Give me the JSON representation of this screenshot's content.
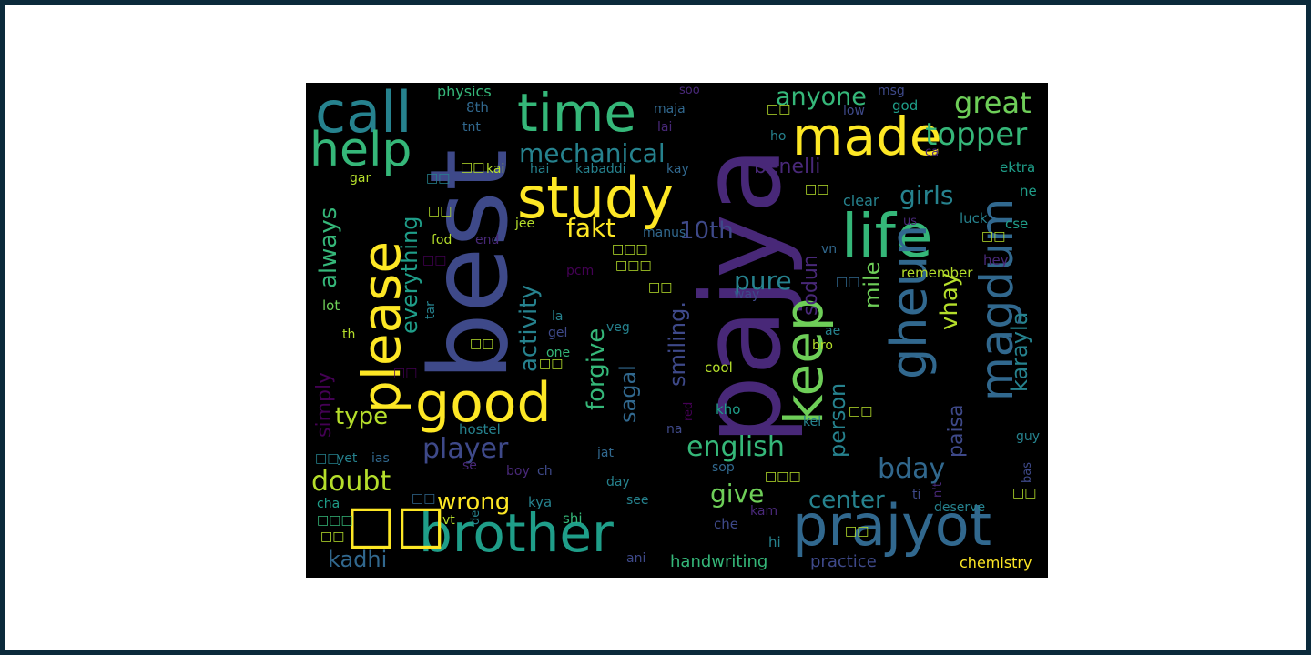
{
  "colors": {
    "background": "#000000",
    "frame": "#0b2a3b",
    "page": "#ffffff",
    "palette": [
      "#440154",
      "#482878",
      "#3e4989",
      "#31688e",
      "#26828e",
      "#1f9e89",
      "#35b779",
      "#6ece58",
      "#b5de2b",
      "#fde725"
    ]
  },
  "words": {
    "best": "best",
    "pajya": "pajya",
    "call": "call",
    "time": "time",
    "made": "made",
    "help": "help",
    "study": "study",
    "please": "please",
    "life": "life",
    "keep": "keep",
    "good": "good",
    "brother": "brother",
    "prajyot": "prajyot",
    "magdum": "magdum",
    "gheun": "gheun",
    "topper": "topper",
    "great": "great",
    "anyone": "anyone",
    "mechanical": "mechanical",
    "benelli": "benelli",
    "girls": "girls",
    "fakt": "fakt",
    "tenth": "10th",
    "always": "always",
    "everything": "everything",
    "activity": "activity",
    "smiling": "smiling.",
    "sodun": "sodun",
    "pure": "pure",
    "mile": "mile",
    "vhay": "vhay",
    "karayla": "karayla",
    "forgive": "forgive",
    "sagal": "sagal",
    "person": "person",
    "paisa": "paisa",
    "english": "english",
    "player": "player",
    "bday": "bday",
    "type": "type",
    "simply": "simply",
    "doubt": "doubt",
    "wrong": "wrong",
    "give": "give",
    "center": "center",
    "kadhi": "kadhi",
    "handwriting": "handwriting",
    "practice": "practice",
    "chemistry": "chemistry",
    "physics": "physics",
    "eighth": "8th",
    "tnt": "tnt",
    "maja": "maja",
    "lai": "lai",
    "soo": "soo",
    "msg": "msg",
    "god": "god",
    "low": "low",
    "ho": "ho",
    "ca": "ca",
    "ektra": "ektra",
    "ne": "ne",
    "cse": "cse",
    "luck": "luck",
    "clear": "clear",
    "us": "us",
    "hey": "hey",
    "remember": "remember",
    "way": "way",
    "vn": "vn",
    "kai": "kai",
    "hai": "hai",
    "kabaddi": "kabaddi",
    "kay": "kay",
    "gar": "gar",
    "jee": "jee",
    "manus": "manus",
    "fod": "fod",
    "end": "end",
    "pcm": "pcm",
    "lot": "lot",
    "tar": "tar",
    "th": "th",
    "la": "la",
    "gel": "gel",
    "veg": "veg",
    "one": "one",
    "ae": "ae",
    "bro": "bro",
    "cool": "cool",
    "red": "red",
    "kho": "kho",
    "kel": "kel",
    "na": "na",
    "hostel": "hostel",
    "yet": "yet",
    "ias": "ias",
    "jat": "jat",
    "guy": "guy",
    "se": "se",
    "boy": "boy",
    "ch": "ch",
    "sop": "sop",
    "nt": "n't",
    "bas": "bas",
    "ti": "ti",
    "day": "day",
    "cha": "cha",
    "kya": "kya",
    "see": "see",
    "deserve": "deserve",
    "vt": "vt",
    "de": "de",
    "shi": "shi",
    "che": "che",
    "kam": "kam",
    "hi": "hi",
    "ani": "ani",
    "box_large": "□□",
    "box2": "□□",
    "box3": "□□□"
  }
}
